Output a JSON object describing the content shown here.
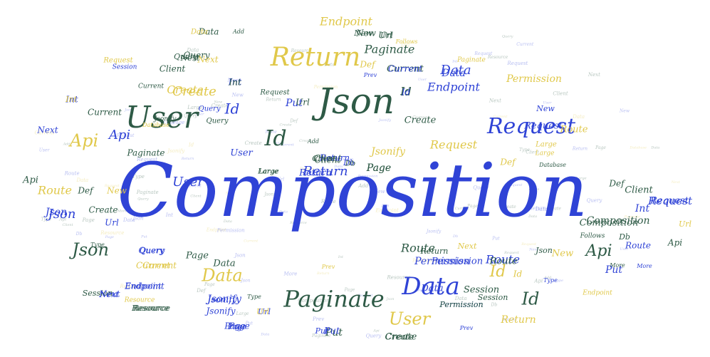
{
  "colors": {
    "blue": "#2f43d6",
    "green": "#2e5a46",
    "yellow": "#e0c84a",
    "lightblue": "#6574d8"
  },
  "words": [
    {
      "text": "Composition",
      "color": "blue"
    },
    {
      "text": "Json",
      "color": "green"
    },
    {
      "text": "User",
      "color": "green"
    },
    {
      "text": "Return",
      "color": "yellow"
    },
    {
      "text": "Request",
      "color": "blue"
    },
    {
      "text": "Data",
      "color": "blue"
    },
    {
      "text": "Paginate",
      "color": "green"
    },
    {
      "text": "Id",
      "color": "green"
    },
    {
      "text": "Api",
      "color": "yellow"
    },
    {
      "text": "User",
      "color": "yellow"
    },
    {
      "text": "Json",
      "color": "green"
    },
    {
      "text": "Data",
      "color": "yellow"
    },
    {
      "text": "Id",
      "color": "green"
    },
    {
      "text": "Id",
      "color": "yellow"
    },
    {
      "text": "Id",
      "color": "blue"
    },
    {
      "text": "Create",
      "color": "yellow"
    },
    {
      "text": "Endpoint",
      "color": "yellow"
    },
    {
      "text": "Paginate",
      "color": "green"
    },
    {
      "text": "Data",
      "color": "blue"
    },
    {
      "text": "Endpoint",
      "color": "blue"
    },
    {
      "text": "Permission",
      "color": "yellow"
    },
    {
      "text": "Return",
      "color": "blue"
    },
    {
      "text": "Route",
      "color": "yellow"
    },
    {
      "text": "Route",
      "color": "blue"
    },
    {
      "text": "Route",
      "color": "green"
    },
    {
      "text": "Api",
      "color": "green"
    },
    {
      "text": "Api",
      "color": "blue"
    },
    {
      "text": "Json",
      "color": "blue"
    },
    {
      "text": "User",
      "color": "blue"
    },
    {
      "text": "Page",
      "color": "green"
    },
    {
      "text": "Put",
      "color": "blue"
    },
    {
      "text": "Put",
      "color": "green"
    },
    {
      "text": "Request",
      "color": "yellow"
    },
    {
      "text": "Request",
      "color": "blue"
    },
    {
      "text": "Permission",
      "color": "blue"
    },
    {
      "text": "Composition",
      "color": "green"
    },
    {
      "text": "Client",
      "color": "green"
    },
    {
      "text": "Current",
      "color": "green"
    },
    {
      "text": "Jsonify",
      "color": "yellow"
    },
    {
      "text": "Jsonify",
      "color": "blue"
    },
    {
      "text": "Session",
      "color": "green"
    },
    {
      "text": "New",
      "color": "green"
    },
    {
      "text": "Url",
      "color": "green"
    },
    {
      "text": "Query",
      "color": "green"
    },
    {
      "text": "Next",
      "color": "yellow"
    },
    {
      "text": "Def",
      "color": "yellow"
    },
    {
      "text": "Int",
      "color": "blue"
    },
    {
      "text": "Create",
      "color": "green"
    },
    {
      "text": "Page",
      "color": "green"
    },
    {
      "text": "Data",
      "color": "green"
    },
    {
      "text": "Query",
      "color": "blue"
    },
    {
      "text": "Current",
      "color": "yellow"
    },
    {
      "text": "Endpoint",
      "color": "blue"
    },
    {
      "text": "Next",
      "color": "blue"
    },
    {
      "text": "Resource",
      "color": "green"
    },
    {
      "text": "Jsonify",
      "color": "blue"
    },
    {
      "text": "Url",
      "color": "blue"
    },
    {
      "text": "Page",
      "color": "blue"
    },
    {
      "text": "Put",
      "color": "blue"
    },
    {
      "text": "Create",
      "color": "green"
    },
    {
      "text": "Session",
      "color": "green"
    },
    {
      "text": "Permission",
      "color": "blue"
    },
    {
      "text": "Return",
      "color": "yellow"
    },
    {
      "text": "Create",
      "color": "yellow"
    },
    {
      "text": "Page",
      "color": "green"
    },
    {
      "text": "Current",
      "color": "green"
    },
    {
      "text": "Return",
      "color": "blue"
    },
    {
      "text": "Client",
      "color": "green"
    },
    {
      "text": "Id",
      "color": "green"
    },
    {
      "text": "Url",
      "color": "green"
    },
    {
      "text": "Query",
      "color": "green"
    },
    {
      "text": "Next",
      "color": "green"
    },
    {
      "text": "Data",
      "color": "green"
    },
    {
      "text": "Url",
      "color": "green"
    },
    {
      "text": "Current",
      "color": "blue"
    },
    {
      "text": "Int",
      "color": "blue"
    },
    {
      "text": "Next",
      "color": "blue"
    },
    {
      "text": "Def",
      "color": "yellow"
    },
    {
      "text": "Paginate",
      "color": "green"
    },
    {
      "text": "Client",
      "color": "green"
    },
    {
      "text": "Return",
      "color": "blue"
    },
    {
      "text": "Db",
      "color": "blue"
    },
    {
      "text": "Large",
      "color": "green"
    },
    {
      "text": "Data",
      "color": "blue"
    },
    {
      "text": "Api",
      "color": "green"
    },
    {
      "text": "Def",
      "color": "green"
    },
    {
      "text": "New",
      "color": "yellow"
    },
    {
      "text": "Json",
      "color": "blue"
    },
    {
      "text": "Create",
      "color": "green"
    },
    {
      "text": "Url",
      "color": "blue"
    },
    {
      "text": "Route",
      "color": "yellow"
    },
    {
      "text": "Data",
      "color": "blue"
    },
    {
      "text": "Request",
      "color": "blue"
    },
    {
      "text": "Client",
      "color": "green"
    },
    {
      "text": "Int",
      "color": "blue"
    },
    {
      "text": "Composition",
      "color": "green"
    },
    {
      "text": "Url",
      "color": "yellow"
    },
    {
      "text": "Def",
      "color": "green"
    },
    {
      "text": "Request",
      "color": "blue"
    },
    {
      "text": "Db",
      "color": "green"
    },
    {
      "text": "Route",
      "color": "blue"
    },
    {
      "text": "Api",
      "color": "green"
    },
    {
      "text": "Put",
      "color": "blue"
    },
    {
      "text": "New",
      "color": "yellow"
    },
    {
      "text": "Json",
      "color": "green"
    },
    {
      "text": "Route",
      "color": "green"
    },
    {
      "text": "Next",
      "color": "yellow"
    },
    {
      "text": "Permission",
      "color": "blue"
    },
    {
      "text": "Current",
      "color": "yellow"
    },
    {
      "text": "Session",
      "color": "green"
    },
    {
      "text": "Jsonify",
      "color": "blue"
    },
    {
      "text": "Url",
      "color": "yellow"
    },
    {
      "text": "Page",
      "color": "blue"
    },
    {
      "text": "Put",
      "color": "blue"
    },
    {
      "text": "Create",
      "color": "green"
    },
    {
      "text": "Resource",
      "color": "green"
    },
    {
      "text": "Next",
      "color": "blue"
    },
    {
      "text": "Endpoint",
      "color": "blue"
    },
    {
      "text": "Query",
      "color": "blue"
    },
    {
      "text": "Permission",
      "color": "green"
    },
    {
      "text": "Large",
      "color": "yellow"
    },
    {
      "text": "User",
      "color": "blue"
    },
    {
      "text": "Id",
      "color": "green"
    },
    {
      "text": "Int",
      "color": "green"
    },
    {
      "text": "New",
      "color": "blue"
    },
    {
      "text": "Request",
      "color": "yellow"
    },
    {
      "text": "Query",
      "color": "green"
    },
    {
      "text": "Page",
      "color": "blue"
    },
    {
      "text": "Int",
      "color": "yellow"
    },
    {
      "text": "Client",
      "color": "green"
    },
    {
      "text": "Data",
      "color": "yellow"
    },
    {
      "text": "Return",
      "color": "green"
    },
    {
      "text": "Db",
      "color": "green"
    },
    {
      "text": "Id",
      "color": "yellow"
    },
    {
      "text": "Id",
      "color": "blue"
    },
    {
      "text": "Large",
      "color": "yellow"
    },
    {
      "text": "Large",
      "color": "green"
    },
    {
      "text": "New",
      "color": "green"
    },
    {
      "text": "Add",
      "color": "green"
    },
    {
      "text": "Add",
      "color": "green"
    },
    {
      "text": "Prev",
      "color": "blue"
    },
    {
      "text": "Prev",
      "color": "yellow"
    },
    {
      "text": "Prev",
      "color": "blue"
    },
    {
      "text": "Type",
      "color": "green"
    },
    {
      "text": "Type",
      "color": "green"
    },
    {
      "text": "Type",
      "color": "blue"
    },
    {
      "text": "More",
      "color": "green"
    },
    {
      "text": "More",
      "color": "blue"
    },
    {
      "text": "Follows",
      "color": "yellow"
    },
    {
      "text": "Follows",
      "color": "green"
    },
    {
      "text": "Database",
      "color": "yellow"
    },
    {
      "text": "Database",
      "color": "green"
    },
    {
      "text": "Endpoint",
      "color": "yellow"
    },
    {
      "text": "Query",
      "color": "blue"
    },
    {
      "text": "Request",
      "color": "green"
    },
    {
      "text": "Resource",
      "color": "yellow"
    },
    {
      "text": "Session",
      "color": "blue"
    },
    {
      "text": "Jsonify",
      "color": "green"
    },
    {
      "text": "Current",
      "color": "green"
    },
    {
      "text": "Paginate",
      "color": "yellow"
    },
    {
      "text": "Permission",
      "color": "yellow"
    }
  ]
}
